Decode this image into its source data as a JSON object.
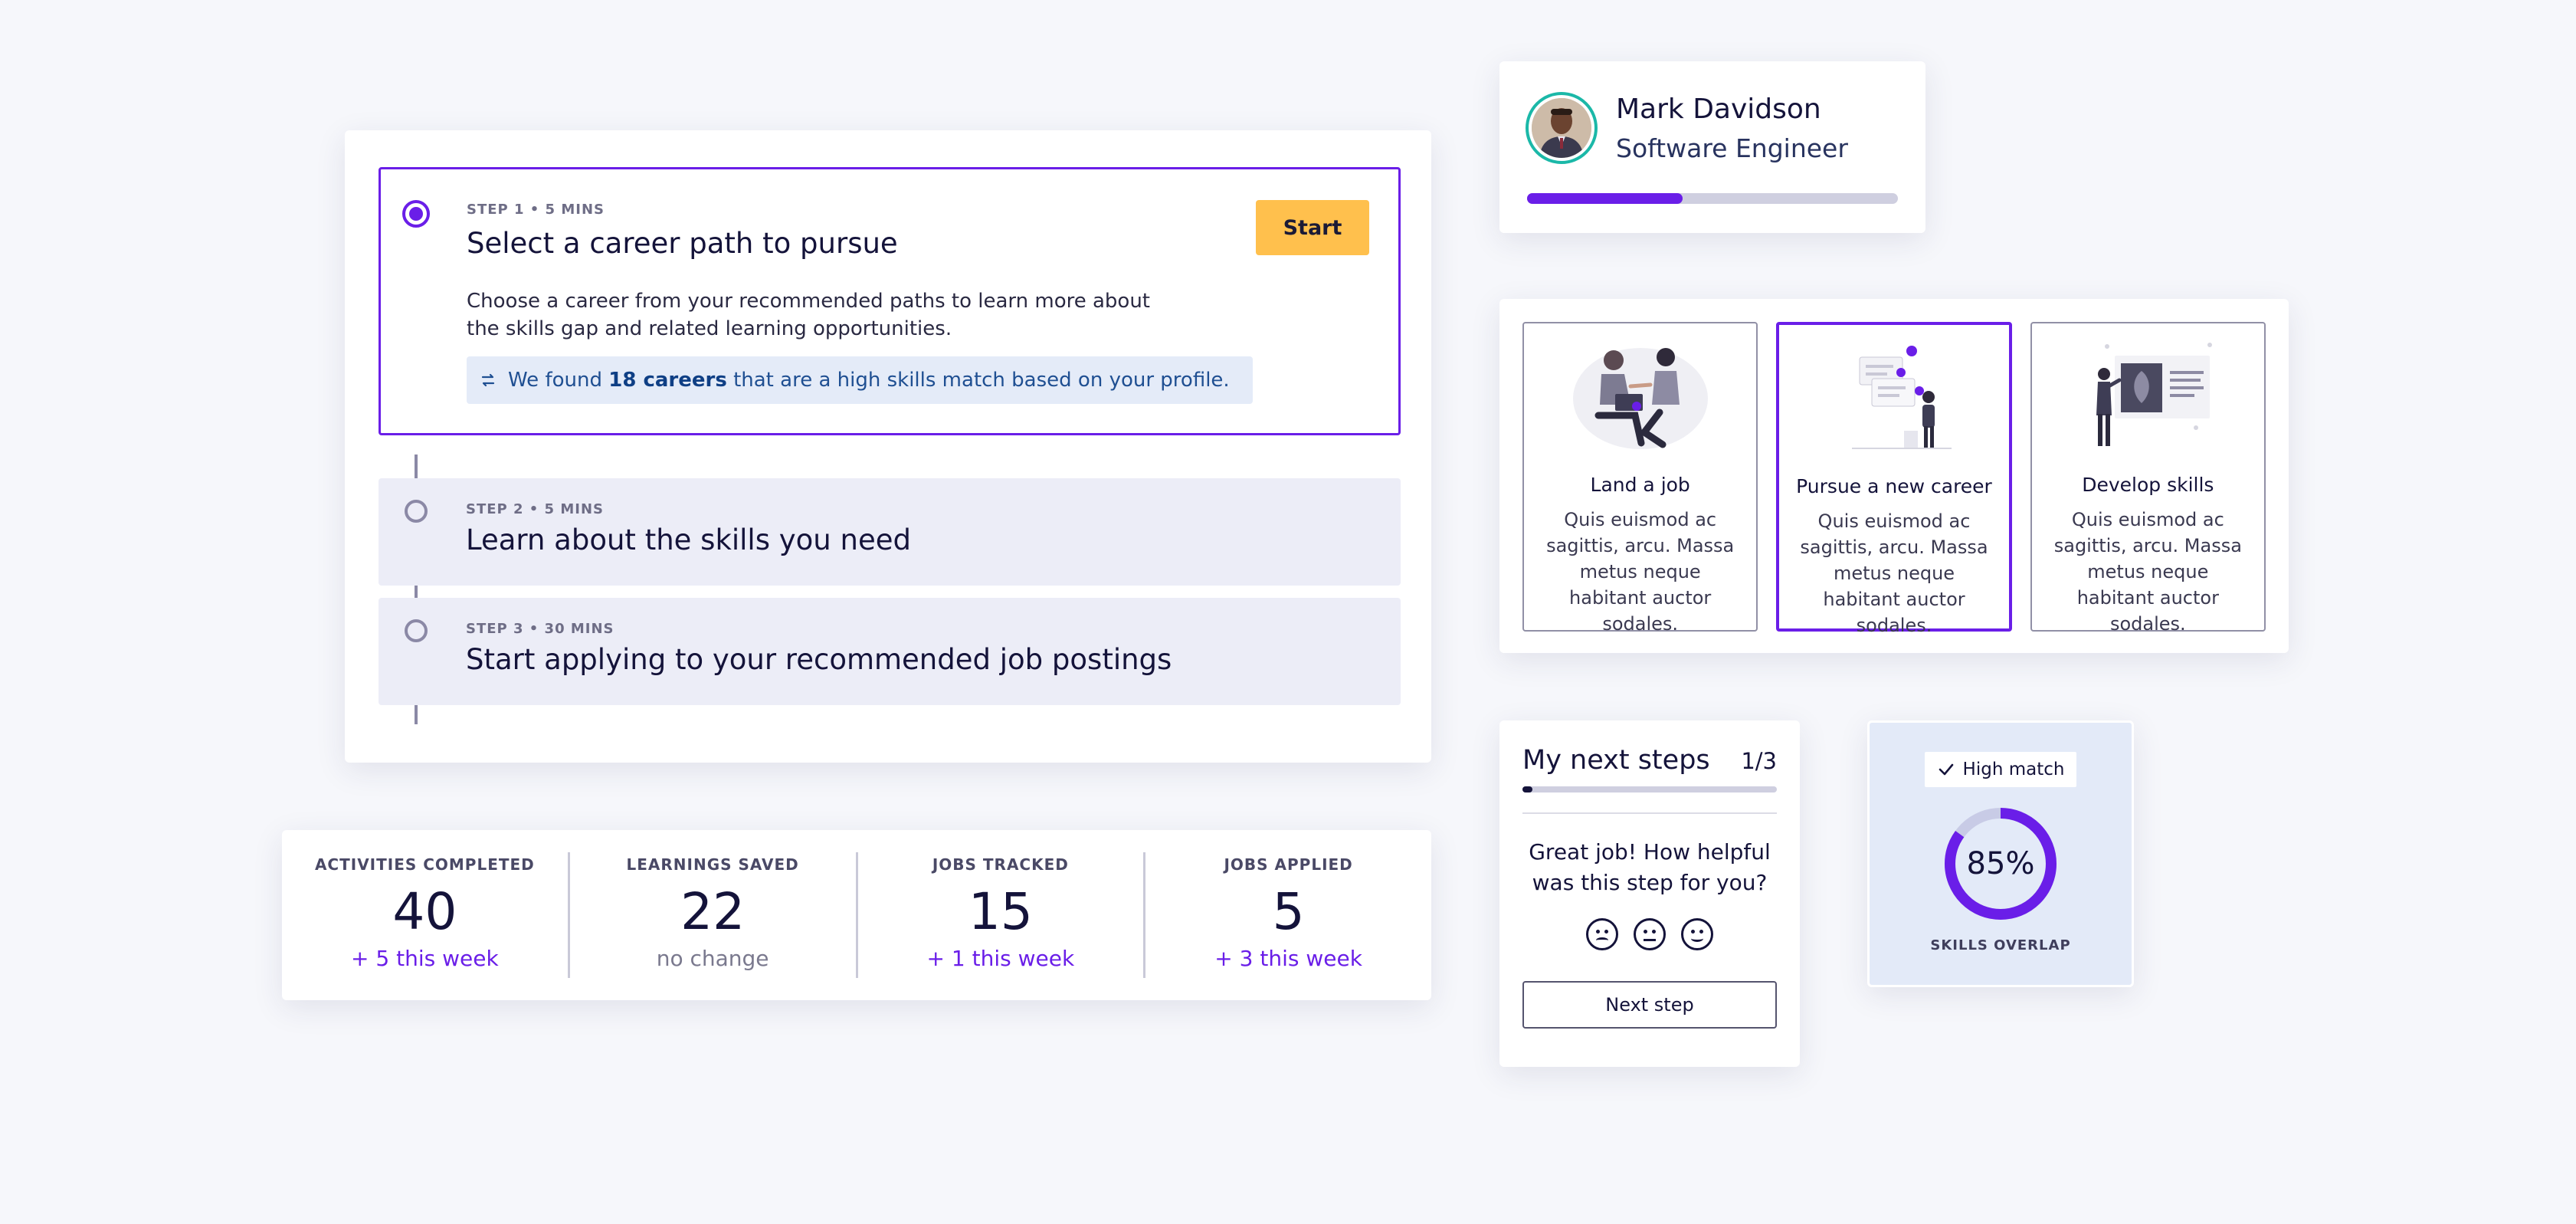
{
  "steps": [
    {
      "meta": "STEP 1 • 5 MINS",
      "title": "Select a career path to pursue",
      "description": "Choose a career from your recommended paths to learn more about the skills gap and related learning opportunities.",
      "banner_prefix": "We found ",
      "banner_bold": "18 careers",
      "banner_suffix": " that are a high skills match based on your profile.",
      "action_label": "Start"
    },
    {
      "meta": "STEP 2 • 5 MINS",
      "title": "Learn about the skills you need"
    },
    {
      "meta": "STEP 3 • 30 MINS",
      "title": "Start applying to your recommended job postings"
    }
  ],
  "stats": [
    {
      "label": "ACTIVITIES COMPLETED",
      "value": "40",
      "change": "+ 5 this week"
    },
    {
      "label": "LEARNINGS SAVED",
      "value": "22",
      "change": "no change"
    },
    {
      "label": "JOBS TRACKED",
      "value": "15",
      "change": "+ 1 this week"
    },
    {
      "label": "JOBS APPLIED",
      "value": "5",
      "change": "+ 3 this week"
    }
  ],
  "profile": {
    "name": "Mark Davidson",
    "role": "Software Engineer",
    "progress": 0.42
  },
  "goals": [
    {
      "title": "Land a job",
      "description": "Quis euismod ac sagittis, arcu. Massa metus neque habitant auctor sodales.",
      "icon": "handshake-illustration",
      "selected": false
    },
    {
      "title": "Pursue a new career",
      "description": "Quis euismod ac sagittis, arcu. Massa metus neque habitant auctor sodales.",
      "icon": "career-illustration",
      "selected": true
    },
    {
      "title": "Develop skills",
      "description": "Quis euismod ac sagittis, arcu. Massa metus neque habitant auctor sodales.",
      "icon": "presentation-illustration",
      "selected": false
    }
  ],
  "next_steps": {
    "title": "My next steps",
    "count": "1/3",
    "progress": 0.04,
    "question": "Great job! How helpful was this step for you?",
    "button_label": "Next step"
  },
  "match": {
    "badge": "High match",
    "value": "85%",
    "percent": 85,
    "caption": "SKILLS OVERLAP"
  },
  "colors": {
    "accent": "#6a1ee8",
    "start_button": "#ffc04d",
    "avatar_ring": "#1bb8a8",
    "banner_bg": "#e4ebf8"
  }
}
